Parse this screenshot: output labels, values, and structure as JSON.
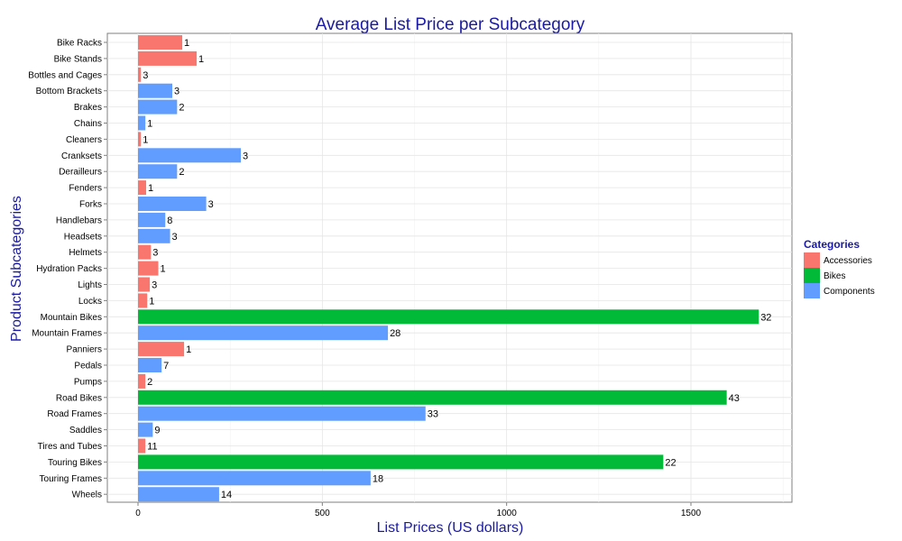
{
  "chart_data": {
    "type": "bar",
    "orientation": "horizontal",
    "title": "Average List Price per Subcategory",
    "xlabel": "List Prices (US dollars)",
    "ylabel": "Product Subcategories",
    "xlim": [
      0,
      1760
    ],
    "xticks": [
      0,
      500,
      1000,
      1500
    ],
    "grid": true,
    "legend": {
      "title": "Categories",
      "placement": "right",
      "entries": [
        {
          "name": "Accessories",
          "color": "#f8766d"
        },
        {
          "name": "Bikes",
          "color": "#00ba38"
        },
        {
          "name": "Components",
          "color": "#619cff"
        }
      ]
    },
    "bars": [
      {
        "category": "Bike Racks",
        "group": "Accessories",
        "value": 120,
        "label": "1"
      },
      {
        "category": "Bike Stands",
        "group": "Accessories",
        "value": 159,
        "label": "1"
      },
      {
        "category": "Bottles and Cages",
        "group": "Accessories",
        "value": 8,
        "label": "3"
      },
      {
        "category": "Bottom Brackets",
        "group": "Components",
        "value": 93,
        "label": "3"
      },
      {
        "category": "Brakes",
        "group": "Components",
        "value": 106,
        "label": "2"
      },
      {
        "category": "Chains",
        "group": "Components",
        "value": 20,
        "label": "1"
      },
      {
        "category": "Cleaners",
        "group": "Accessories",
        "value": 8,
        "label": "1"
      },
      {
        "category": "Cranksets",
        "group": "Components",
        "value": 279,
        "label": "3"
      },
      {
        "category": "Derailleurs",
        "group": "Components",
        "value": 106,
        "label": "2"
      },
      {
        "category": "Fenders",
        "group": "Accessories",
        "value": 22,
        "label": "1"
      },
      {
        "category": "Forks",
        "group": "Components",
        "value": 185,
        "label": "3"
      },
      {
        "category": "Handlebars",
        "group": "Components",
        "value": 74,
        "label": "8"
      },
      {
        "category": "Headsets",
        "group": "Components",
        "value": 87,
        "label": "3"
      },
      {
        "category": "Helmets",
        "group": "Accessories",
        "value": 35,
        "label": "3"
      },
      {
        "category": "Hydration Packs",
        "group": "Accessories",
        "value": 55,
        "label": "1"
      },
      {
        "category": "Lights",
        "group": "Accessories",
        "value": 32,
        "label": "3"
      },
      {
        "category": "Locks",
        "group": "Accessories",
        "value": 25,
        "label": "1"
      },
      {
        "category": "Mountain Bikes",
        "group": "Bikes",
        "value": 1684,
        "label": "32"
      },
      {
        "category": "Mountain Frames",
        "group": "Components",
        "value": 678,
        "label": "28"
      },
      {
        "category": "Panniers",
        "group": "Accessories",
        "value": 125,
        "label": "1"
      },
      {
        "category": "Pedals",
        "group": "Components",
        "value": 64,
        "label": "7"
      },
      {
        "category": "Pumps",
        "group": "Accessories",
        "value": 20,
        "label": "2"
      },
      {
        "category": "Road Bikes",
        "group": "Bikes",
        "value": 1597,
        "label": "43"
      },
      {
        "category": "Road Frames",
        "group": "Components",
        "value": 780,
        "label": "33"
      },
      {
        "category": "Saddles",
        "group": "Components",
        "value": 40,
        "label": "9"
      },
      {
        "category": "Tires and Tubes",
        "group": "Accessories",
        "value": 20,
        "label": "11"
      },
      {
        "category": "Touring Bikes",
        "group": "Bikes",
        "value": 1425,
        "label": "22"
      },
      {
        "category": "Touring Frames",
        "group": "Components",
        "value": 631,
        "label": "18"
      },
      {
        "category": "Wheels",
        "group": "Components",
        "value": 220,
        "label": "14"
      }
    ]
  }
}
